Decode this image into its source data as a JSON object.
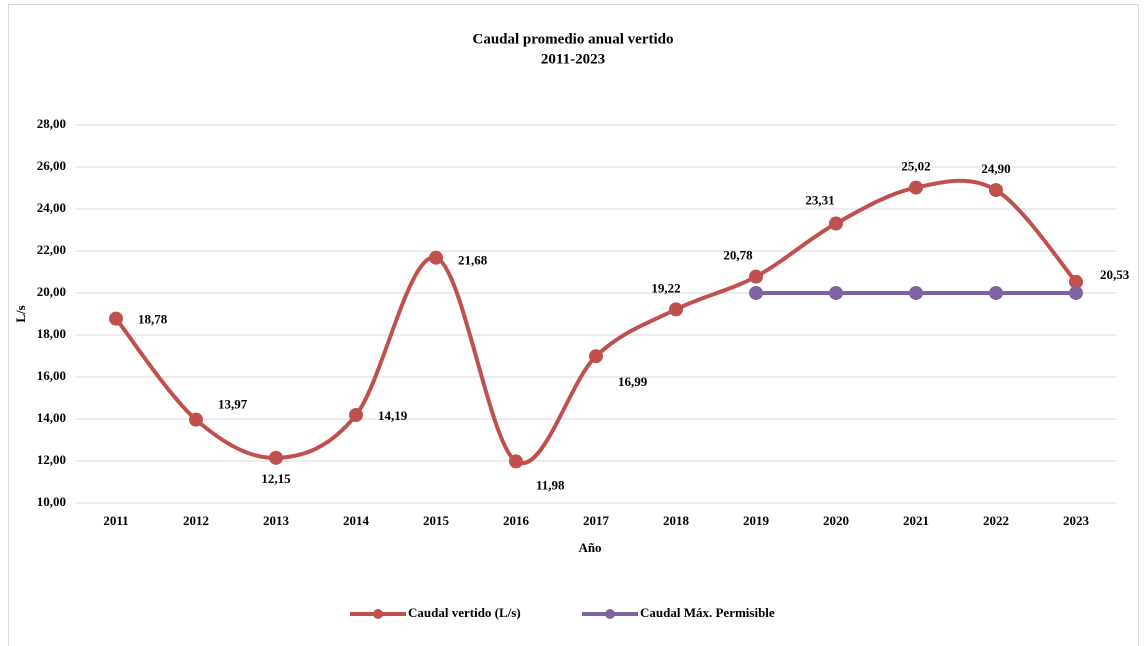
{
  "chart_data": {
    "type": "line",
    "title": "Caudal promedio anual vertido",
    "subtitle": "2011-2023",
    "x_label": "Año",
    "y_label": "L/s",
    "categories": [
      "2011",
      "2012",
      "2013",
      "2014",
      "2015",
      "2016",
      "2017",
      "2018",
      "2019",
      "2020",
      "2021",
      "2022",
      "2023"
    ],
    "series": [
      {
        "name": "Caudal vertido (L/s)",
        "color": "#c0504d",
        "values": [
          18.78,
          13.97,
          12.15,
          14.19,
          21.68,
          11.98,
          16.99,
          19.22,
          20.78,
          23.31,
          25.02,
          24.9,
          20.53
        ],
        "value_labels": [
          "18,78",
          "13,97",
          "12,15",
          "14,19",
          "21,68",
          "11,98",
          "16,99",
          "19,22",
          "20,78",
          "23,31",
          "25,02",
          "24,90",
          "20,53"
        ]
      },
      {
        "name": "Caudal Máx. Permisible",
        "color": "#8064a2",
        "values": [
          null,
          null,
          null,
          null,
          null,
          null,
          null,
          null,
          20,
          20,
          20,
          20,
          20
        ]
      }
    ],
    "ylim": [
      10,
      28
    ],
    "yticks": [
      {
        "value": 10,
        "label": "10,00"
      },
      {
        "value": 12,
        "label": "12,00"
      },
      {
        "value": 14,
        "label": "14,00"
      },
      {
        "value": 16,
        "label": "16,00"
      },
      {
        "value": 18,
        "label": "18,00"
      },
      {
        "value": 20,
        "label": "20,00"
      },
      {
        "value": 22,
        "label": "22,00"
      },
      {
        "value": 24,
        "label": "24,00"
      },
      {
        "value": 26,
        "label": "26,00"
      },
      {
        "value": 28,
        "label": "28,00"
      }
    ],
    "grid": true,
    "smooth": true,
    "legend": "bottom"
  }
}
